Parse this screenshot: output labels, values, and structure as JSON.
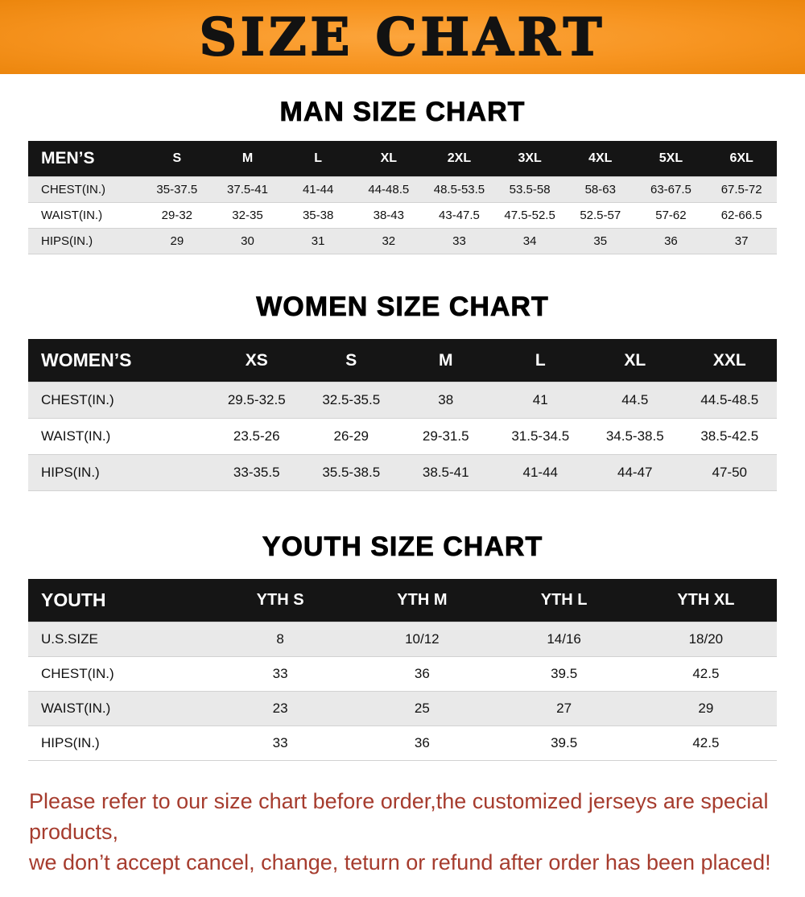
{
  "banner": {
    "title": "SIZE CHART"
  },
  "sections": [
    {
      "title": "MAN SIZE CHART",
      "table": {
        "header": [
          "MEN’S",
          "S",
          "M",
          "L",
          "XL",
          "2XL",
          "3XL",
          "4XL",
          "5XL",
          "6XL"
        ],
        "rows": [
          [
            "CHEST(IN.)",
            "35-37.5",
            "37.5-41",
            "41-44",
            "44-48.5",
            "48.5-53.5",
            "53.5-58",
            "58-63",
            "63-67.5",
            "67.5-72"
          ],
          [
            "WAIST(IN.)",
            "29-32",
            "32-35",
            "35-38",
            "38-43",
            "43-47.5",
            "47.5-52.5",
            "52.5-57",
            "57-62",
            "62-66.5"
          ],
          [
            "HIPS(IN.)",
            "29",
            "30",
            "31",
            "32",
            "33",
            "34",
            "35",
            "36",
            "37"
          ]
        ]
      }
    },
    {
      "title": "WOMEN SIZE CHART",
      "table": {
        "header": [
          "WOMEN’S",
          "XS",
          "S",
          "M",
          "L",
          "XL",
          "XXL"
        ],
        "rows": [
          [
            "CHEST(IN.)",
            "29.5-32.5",
            "32.5-35.5",
            "38",
            "41",
            "44.5",
            "44.5-48.5"
          ],
          [
            "WAIST(IN.)",
            "23.5-26",
            "26-29",
            "29-31.5",
            "31.5-34.5",
            "34.5-38.5",
            "38.5-42.5"
          ],
          [
            "HIPS(IN.)",
            "33-35.5",
            "35.5-38.5",
            "38.5-41",
            "41-44",
            "44-47",
            "47-50"
          ]
        ]
      }
    },
    {
      "title": "YOUTH SIZE CHART",
      "table": {
        "header": [
          "YOUTH",
          "YTH S",
          "YTH M",
          "YTH L",
          "YTH XL"
        ],
        "rows": [
          [
            "U.S.SIZE",
            "8",
            "10/12",
            "14/16",
            "18/20"
          ],
          [
            "CHEST(IN.)",
            "33",
            "36",
            "39.5",
            "42.5"
          ],
          [
            "WAIST(IN.)",
            "23",
            "25",
            "27",
            "29"
          ],
          [
            "HIPS(IN.)",
            "33",
            "36",
            "39.5",
            "42.5"
          ]
        ]
      }
    }
  ],
  "footer": {
    "line1": "Please refer to our size chart before order,the customized jerseys are special products,",
    "line2": "we don’t accept cancel, change, teturn or refund after order has been placed!"
  },
  "colors": {
    "banner_orange": "#f79420",
    "table_header_black": "#151515",
    "stripe_gray": "#e9e9e9",
    "footer_red": "#a63c2e"
  }
}
